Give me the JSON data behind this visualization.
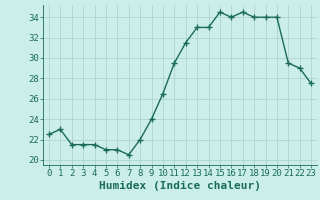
{
  "x": [
    0,
    1,
    2,
    3,
    4,
    5,
    6,
    7,
    8,
    9,
    10,
    11,
    12,
    13,
    14,
    15,
    16,
    17,
    18,
    19,
    20,
    21,
    22,
    23
  ],
  "y": [
    22.5,
    23.0,
    21.5,
    21.5,
    21.5,
    21.0,
    21.0,
    20.5,
    22.0,
    24.0,
    26.5,
    29.5,
    31.5,
    33.0,
    33.0,
    34.5,
    34.0,
    34.5,
    34.0,
    34.0,
    34.0,
    29.5,
    29.0,
    27.5
  ],
  "line_color": "#1a6b5a",
  "marker": "+",
  "bg_color": "#cceee8",
  "grid_color_major": "#aacccc",
  "grid_color_minor": "#bbdddd",
  "xlabel": "Humidex (Indice chaleur)",
  "xlim": [
    -0.5,
    23.5
  ],
  "ylim": [
    19.5,
    35.2
  ],
  "yticks": [
    20,
    22,
    24,
    26,
    28,
    30,
    32,
    34
  ],
  "xticks": [
    0,
    1,
    2,
    3,
    4,
    5,
    6,
    7,
    8,
    9,
    10,
    11,
    12,
    13,
    14,
    15,
    16,
    17,
    18,
    19,
    20,
    21,
    22,
    23
  ],
  "font_color": "#1a6b5a",
  "tick_fontsize": 6.5,
  "label_fontsize": 8,
  "linewidth": 1.0,
  "markersize": 4,
  "markeredgewidth": 1.0
}
